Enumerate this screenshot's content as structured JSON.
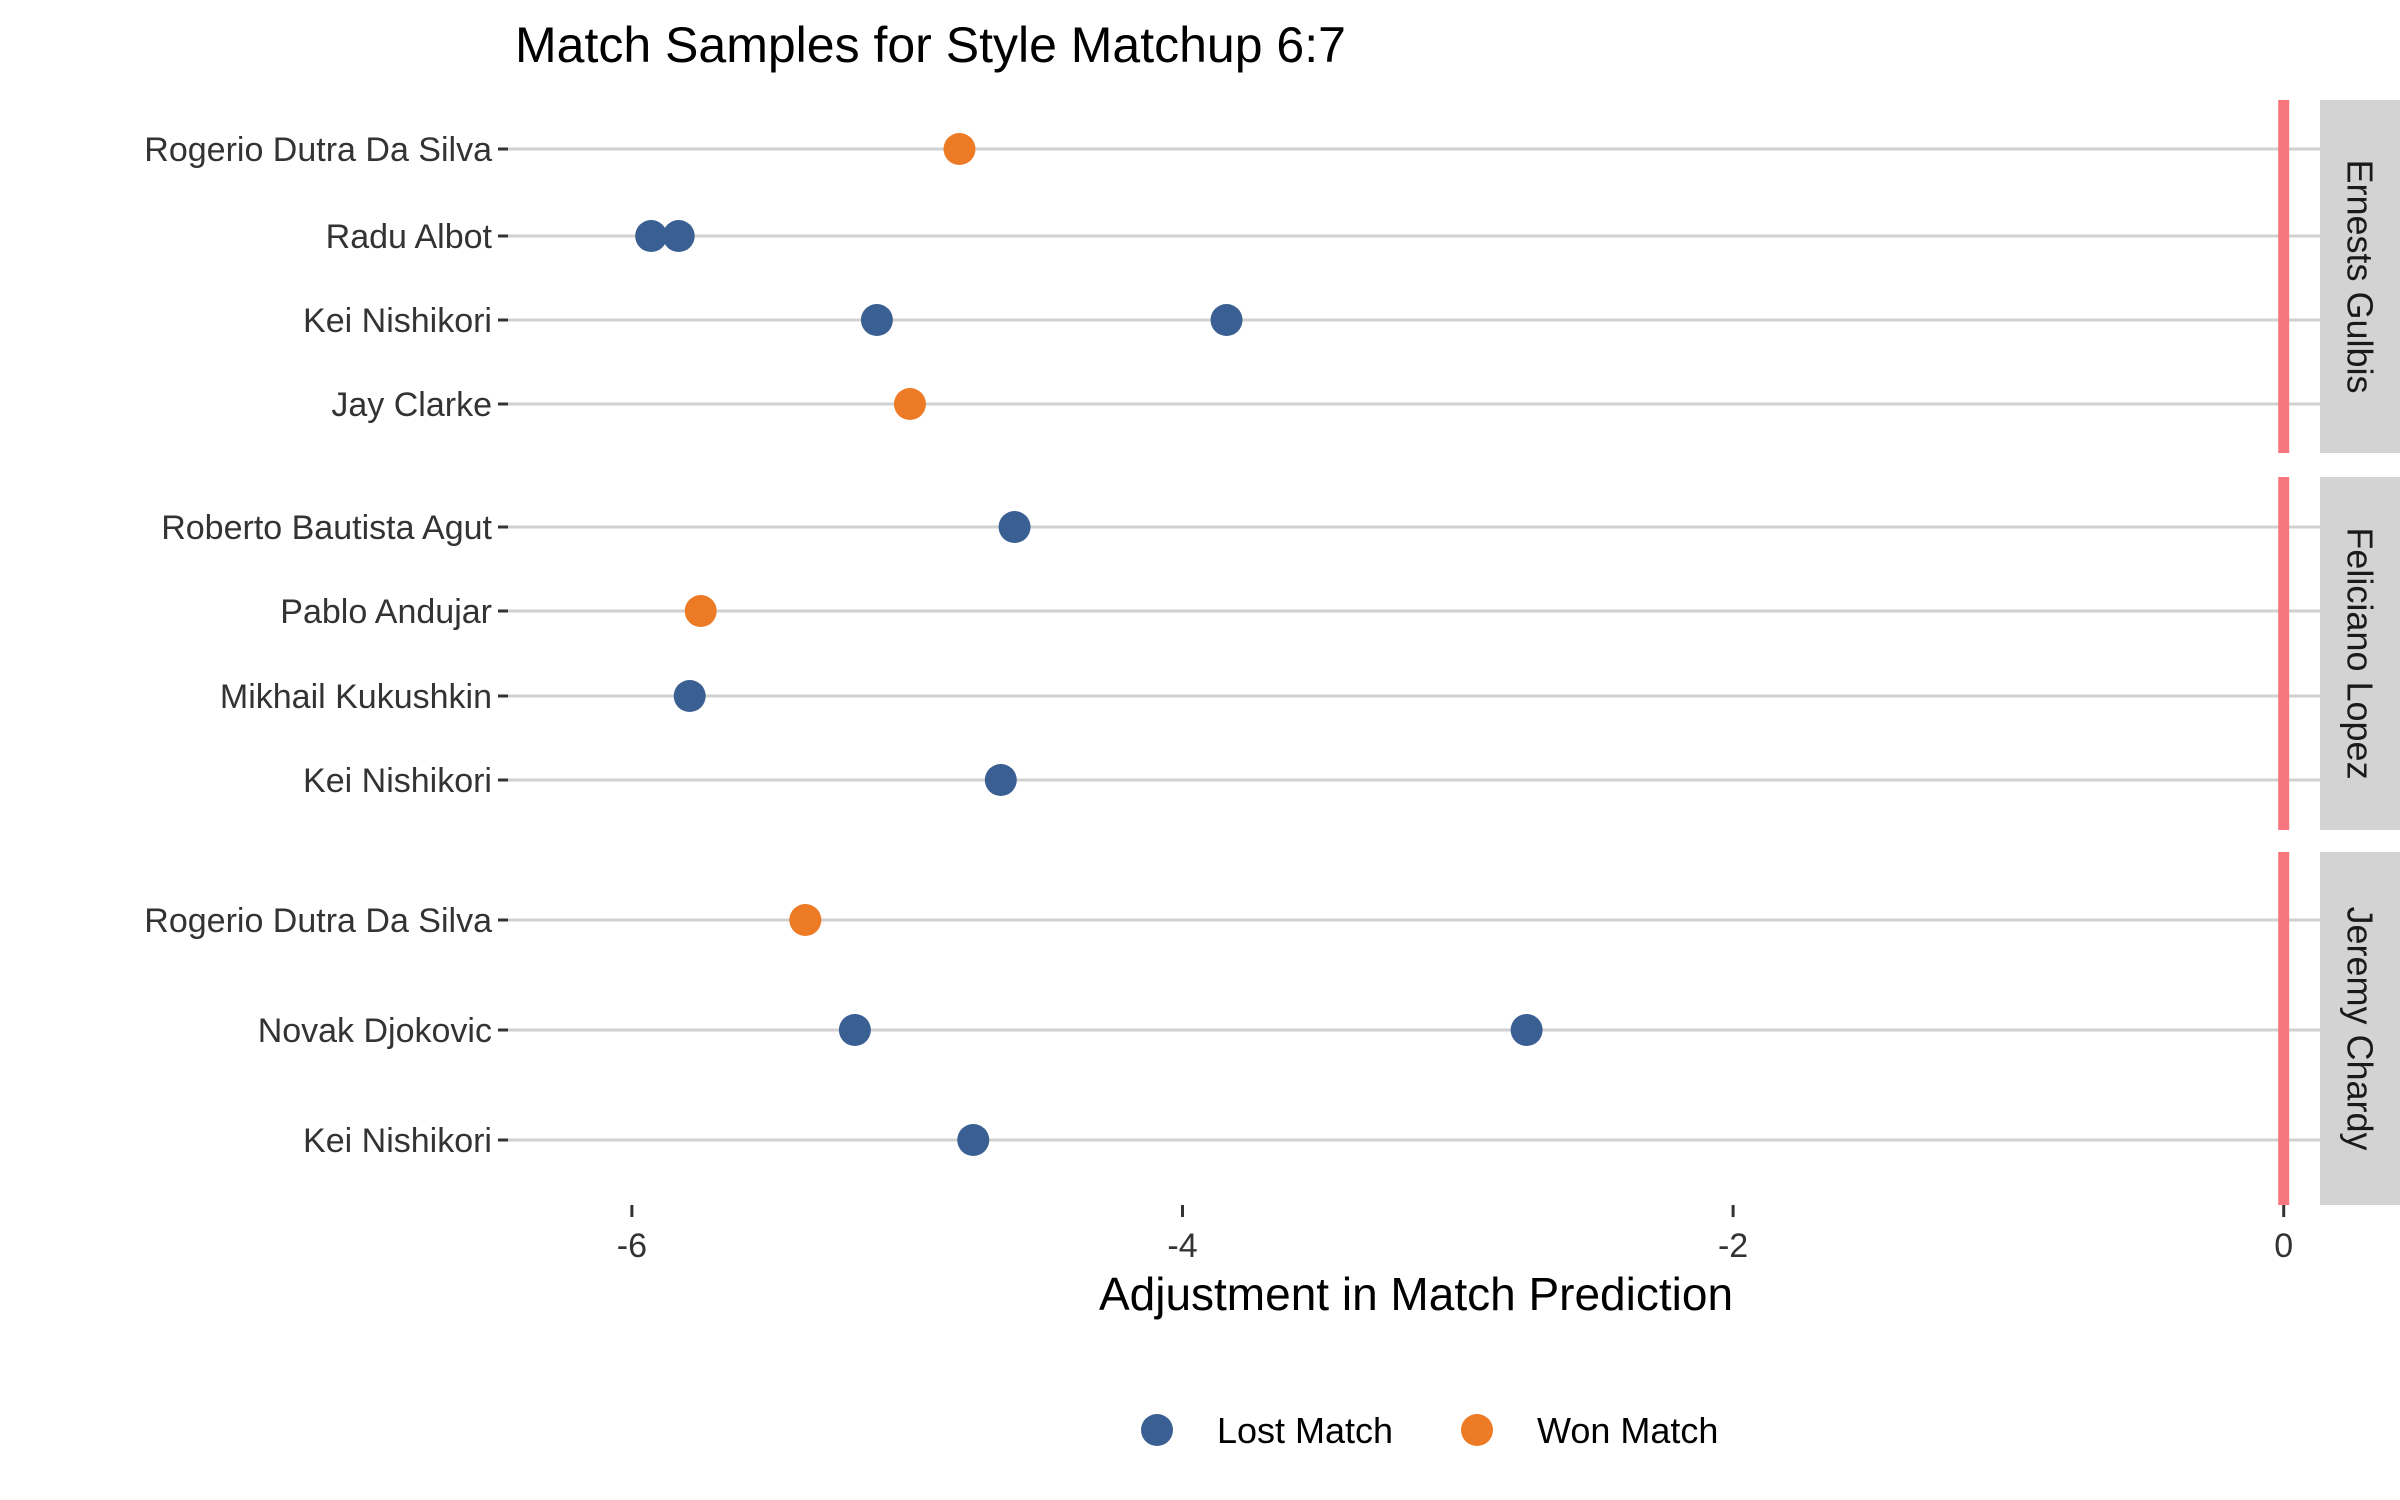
{
  "chart_data": {
    "type": "scatter",
    "title": "Match Samples for Style Matchup 6:7",
    "xlabel": "Adjustment in Match Prediction",
    "xlim": [
      -6.45,
      0.15
    ],
    "xticks": [
      -6,
      -4,
      -2,
      0
    ],
    "xtick_labels": [
      "-6",
      "-4",
      "-2",
      "0"
    ],
    "reference_line": {
      "x": 0,
      "color": "#F8767D"
    },
    "legend": {
      "position": "bottom",
      "entries": [
        {
          "label": "Lost Match",
          "color": "#3A5F93"
        },
        {
          "label": "Won Match",
          "color": "#ED7B25"
        }
      ]
    },
    "panels": [
      {
        "facet": "Ernests Gulbis",
        "rows": [
          {
            "label": "Rogerio Dutra Da Silva",
            "points": [
              {
                "x": -4.81,
                "result": "Won Match"
              }
            ]
          },
          {
            "label": "Radu Albot",
            "points": [
              {
                "x": -5.93,
                "result": "Lost Match"
              },
              {
                "x": -5.83,
                "result": "Lost Match"
              }
            ]
          },
          {
            "label": "Kei Nishikori",
            "points": [
              {
                "x": -5.11,
                "result": "Lost Match"
              },
              {
                "x": -3.84,
                "result": "Lost Match"
              }
            ]
          },
          {
            "label": "Jay Clarke",
            "points": [
              {
                "x": -4.99,
                "result": "Won Match"
              }
            ]
          }
        ]
      },
      {
        "facet": "Feliciano Lopez",
        "rows": [
          {
            "label": "Roberto Bautista Agut",
            "points": [
              {
                "x": -4.61,
                "result": "Lost Match"
              }
            ]
          },
          {
            "label": "Pablo Andujar",
            "points": [
              {
                "x": -5.75,
                "result": "Won Match"
              }
            ]
          },
          {
            "label": "Mikhail Kukushkin",
            "points": [
              {
                "x": -5.79,
                "result": "Lost Match"
              }
            ]
          },
          {
            "label": "Kei Nishikori",
            "points": [
              {
                "x": -4.66,
                "result": "Lost Match"
              }
            ]
          }
        ]
      },
      {
        "facet": "Jeremy Chardy",
        "rows": [
          {
            "label": "Rogerio Dutra Da Silva",
            "points": [
              {
                "x": -5.37,
                "result": "Won Match"
              }
            ]
          },
          {
            "label": "Novak Djokovic",
            "points": [
              {
                "x": -5.19,
                "result": "Lost Match"
              },
              {
                "x": -2.75,
                "result": "Lost Match"
              }
            ]
          },
          {
            "label": "Kei Nishikori",
            "points": [
              {
                "x": -4.76,
                "result": "Lost Match"
              }
            ]
          }
        ]
      }
    ]
  }
}
